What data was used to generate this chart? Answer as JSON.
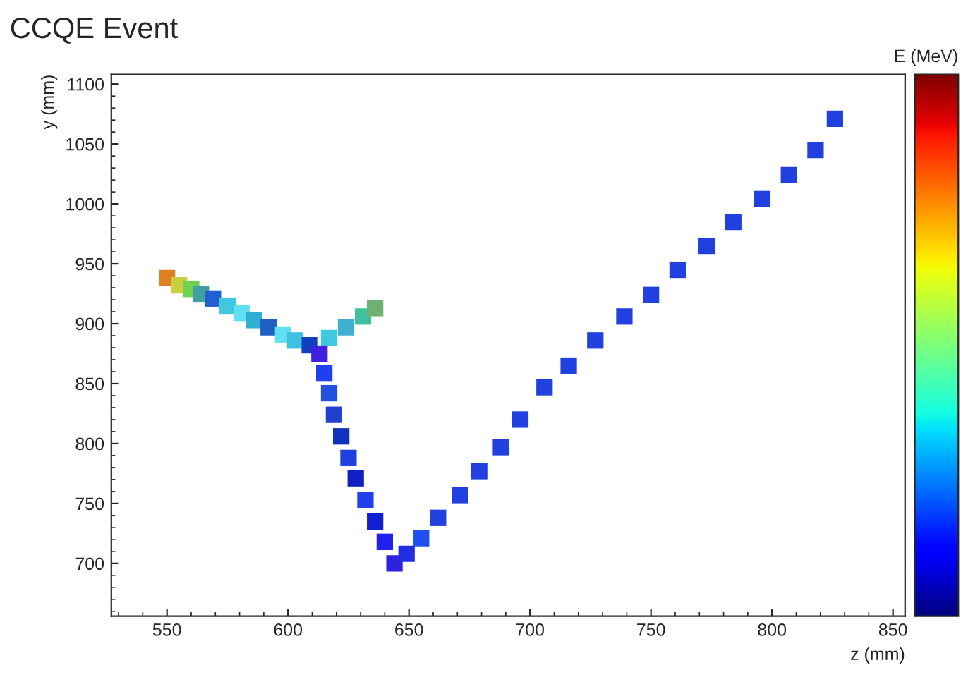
{
  "chart_data": {
    "type": "scatter",
    "title": "CCQE Event",
    "xlabel": "z (mm)",
    "ylabel": "y (mm)",
    "clabel": "E (MeV)",
    "xlim": [
      527,
      855
    ],
    "ylim": [
      656,
      1108
    ],
    "xticks": [
      550,
      600,
      650,
      700,
      750,
      800,
      850
    ],
    "yticks": [
      700,
      750,
      800,
      850,
      900,
      950,
      1000,
      1050,
      1100
    ],
    "grid": false,
    "marker": "square",
    "x": [
      550,
      555,
      560,
      564,
      569,
      575,
      581,
      586,
      592,
      598,
      603,
      609,
      617,
      624,
      631,
      636,
      613,
      615,
      617,
      619,
      622,
      625,
      628,
      632,
      636,
      640,
      644,
      649,
      655,
      662,
      671,
      679,
      688,
      696,
      706,
      716,
      727,
      739,
      750,
      761,
      773,
      784,
      796,
      807,
      818,
      826
    ],
    "values": [
      938,
      932,
      929,
      925,
      921,
      915,
      909,
      903,
      897,
      891,
      886,
      882,
      888,
      897,
      906,
      913,
      875,
      859,
      842,
      824,
      806,
      788,
      771,
      753,
      735,
      718,
      700,
      708,
      721,
      738,
      757,
      777,
      797,
      820,
      847,
      865,
      886,
      906,
      924,
      945,
      965,
      985,
      1004,
      1024,
      1045,
      1071
    ],
    "colors": [
      "#e08020",
      "#c8d040",
      "#70d050",
      "#40a0a0",
      "#2060d0",
      "#40c8e0",
      "#60e0f0",
      "#30b0d0",
      "#2060c0",
      "#60e0f0",
      "#40c0e0",
      "#1040c0",
      "#40c8e0",
      "#40b0d0",
      "#40c0a0",
      "#70b070",
      "#4020e0",
      "#2040f0",
      "#2050e0",
      "#2040d0",
      "#1030c0",
      "#2040e0",
      "#1020c0",
      "#2040f0",
      "#1020d0",
      "#2020f0",
      "#3020e0",
      "#2030e0",
      "#2050f0",
      "#2040e0",
      "#2040e0",
      "#2040e0",
      "#2040e0",
      "#2040e0",
      "#2040e0",
      "#2040e0",
      "#2040e0",
      "#2040e0",
      "#2040e0",
      "#2040e0",
      "#2040e0",
      "#2040e0",
      "#2040e0",
      "#2040e0",
      "#2040e0",
      "#2040e0"
    ]
  }
}
